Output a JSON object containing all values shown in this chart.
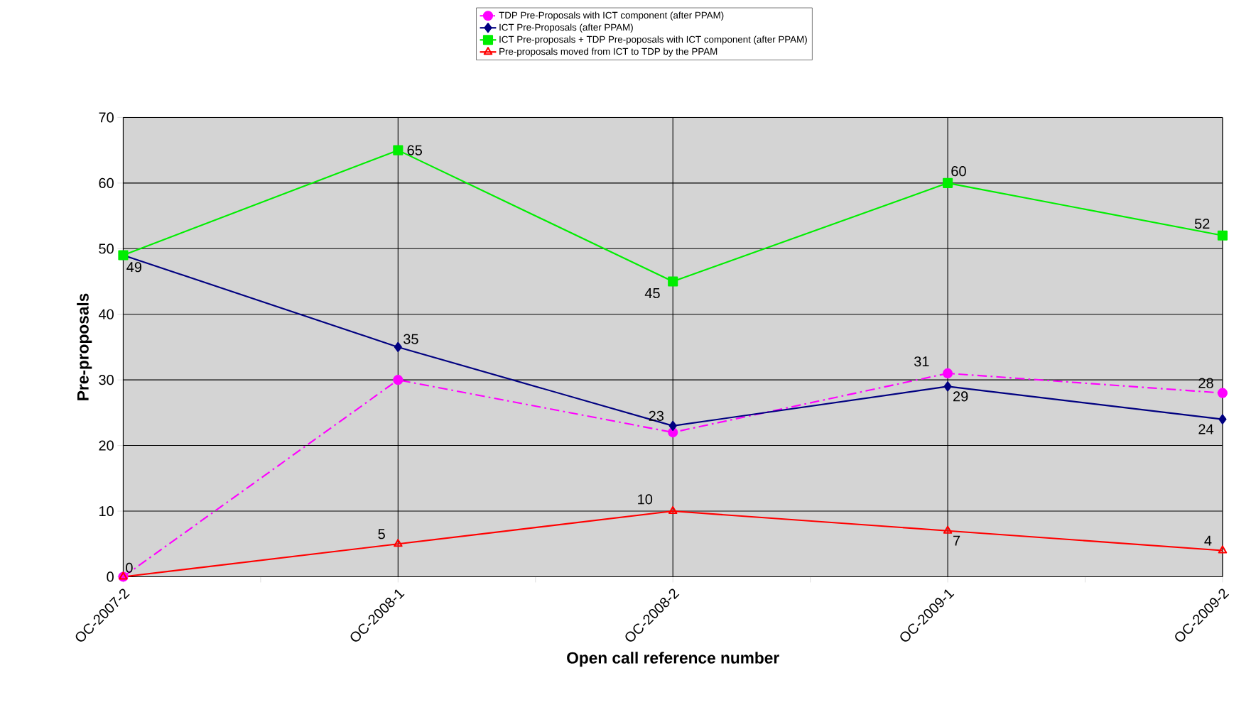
{
  "chart_data": {
    "type": "line",
    "xlabel": "Open call reference number",
    "ylabel": "Pre-proposals",
    "categories": [
      "OC-2007-2",
      "OC-2008-1",
      "OC-2008-2",
      "OC-2009-1",
      "OC-2009-2"
    ],
    "ylim": [
      0,
      70
    ],
    "yticks": [
      0,
      10,
      20,
      30,
      40,
      50,
      60,
      70
    ],
    "grid": true,
    "legend": "top",
    "series": [
      {
        "name": "TDP Pre-Proposals with ICT component (after PPAM)",
        "color": "#ff00ff",
        "marker": "circle",
        "line_style": "dashdot",
        "values": [
          0,
          30,
          22,
          31,
          28
        ],
        "value_labels": [
          "0",
          null,
          null,
          "31",
          "28"
        ]
      },
      {
        "name": "ICT Pre-Proposals (after PPAM)",
        "color": "#000080",
        "marker": "diamond",
        "line_style": "solid",
        "values": [
          49,
          35,
          23,
          29,
          24
        ],
        "value_labels": [
          "49",
          "35",
          "23",
          "29",
          "24"
        ]
      },
      {
        "name": "ICT Pre-proposals + TDP Pre-poposals with ICT component (after PPAM)",
        "color": "#00ee00",
        "marker": "square",
        "line_style": "solid",
        "values": [
          49,
          65,
          45,
          60,
          52
        ],
        "value_labels": [
          null,
          "65",
          "45",
          "60",
          "52"
        ]
      },
      {
        "name": "Pre-proposals moved from ICT to TDP by the PPAM",
        "color": "#ff0000",
        "marker": "triangle",
        "line_style": "solid",
        "values": [
          0,
          5,
          10,
          7,
          4
        ],
        "value_labels": [
          null,
          "5",
          "10",
          "7",
          "4"
        ]
      }
    ]
  }
}
